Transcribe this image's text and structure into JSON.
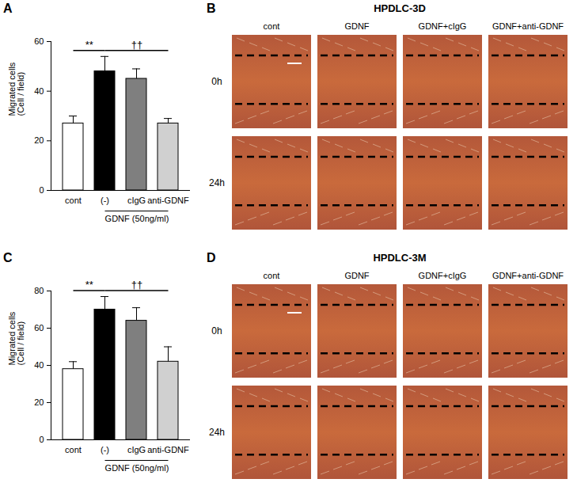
{
  "chart_data": [
    {
      "type": "bar",
      "panel": "A",
      "categories": [
        "cont",
        "(-)",
        "cIgG",
        "anti-GDNF"
      ],
      "values": [
        27,
        48,
        45,
        27
      ],
      "errors": [
        3,
        6,
        4,
        2
      ],
      "colors": [
        "#ffffff",
        "#000000",
        "#7f7f7f",
        "#d0d0d0"
      ],
      "ylabel": "Migrated cells (Cell / field)",
      "ylim": [
        0,
        60
      ],
      "yticks": [
        0,
        20,
        40,
        60
      ],
      "group": {
        "label": "GDNF (50ng/ml)",
        "categories": [
          "(-)",
          "cIgG",
          "anti-GDNF"
        ]
      },
      "annotations": [
        {
          "text": "**",
          "from": "cont",
          "to": "(-)"
        },
        {
          "text": "††",
          "from": "(-)",
          "to": "anti-GDNF"
        }
      ]
    },
    {
      "type": "bar",
      "panel": "C",
      "categories": [
        "cont",
        "(-)",
        "cIgG",
        "anti-GDNF"
      ],
      "values": [
        38,
        70,
        64,
        42
      ],
      "errors": [
        4,
        7,
        7,
        8
      ],
      "colors": [
        "#ffffff",
        "#000000",
        "#7f7f7f",
        "#d0d0d0"
      ],
      "ylabel": "Migrated cells (Cell / field)",
      "ylim": [
        0,
        80
      ],
      "yticks": [
        0,
        20,
        40,
        60,
        80
      ],
      "group": {
        "label": "GDNF (50ng/ml)",
        "categories": [
          "(-)",
          "cIgG",
          "anti-GDNF"
        ]
      },
      "annotations": [
        {
          "text": "**",
          "from": "cont",
          "to": "(-)"
        },
        {
          "text": "††",
          "from": "(-)",
          "to": "anti-GDNF"
        }
      ]
    }
  ],
  "image_panels": [
    {
      "panel": "B",
      "title": "HPDLC-3D",
      "columns": [
        "cont",
        "GDNF",
        "GDNF+cIgG",
        "GDNF+anti-GDNF"
      ],
      "rows": [
        "0h",
        "24h"
      ]
    },
    {
      "panel": "D",
      "title": "HPDLC-3M",
      "columns": [
        "cont",
        "GDNF",
        "GDNF+cIgG",
        "GDNF+anti-GDNF"
      ],
      "rows": [
        "0h",
        "24h"
      ]
    }
  ]
}
